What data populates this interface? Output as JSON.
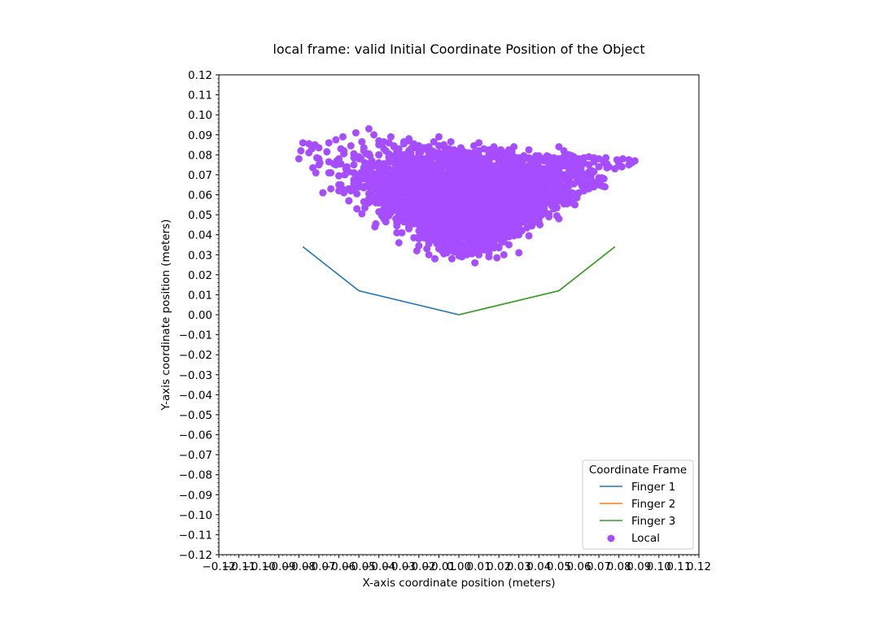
{
  "chart_data": {
    "type": "scatter",
    "title": "local frame: valid Initial Coordinate Position of the Object",
    "xlabel": "X-axis coordinate position (meters)",
    "ylabel": "Y-axis coordinate position (meters)",
    "xlim": [
      -0.12,
      0.12
    ],
    "ylim": [
      -0.12,
      0.12
    ],
    "xticks": [
      -0.12,
      -0.11,
      -0.1,
      -0.09,
      -0.08,
      -0.07,
      -0.06,
      -0.05,
      -0.04,
      -0.03,
      -0.02,
      -0.01,
      0.0,
      0.01,
      0.02,
      0.03,
      0.04,
      0.05,
      0.06,
      0.07,
      0.08,
      0.09,
      0.1,
      0.11,
      0.12
    ],
    "yticks": [
      0.12,
      0.11,
      0.1,
      0.09,
      0.08,
      0.07,
      0.06,
      0.05,
      0.04,
      0.03,
      0.02,
      0.01,
      0.0,
      -0.01,
      -0.02,
      -0.03,
      -0.04,
      -0.05,
      -0.06,
      -0.07,
      -0.08,
      -0.09,
      -0.1,
      -0.11,
      -0.12
    ],
    "xtick_labels": [
      "−0.12",
      "−0.11",
      "−0.10",
      "−0.09",
      "−0.08",
      "−0.07",
      "−0.06",
      "−0.05",
      "−0.04",
      "−0.03",
      "−0.02",
      "−0.01",
      "0.00",
      "0.01",
      "0.02",
      "0.03",
      "0.04",
      "0.05",
      "0.06",
      "0.07",
      "0.08",
      "0.09",
      "0.10",
      "0.11",
      "0.12"
    ],
    "ytick_labels": [
      "0.12",
      "0.11",
      "0.10",
      "0.09",
      "0.08",
      "0.07",
      "0.06",
      "0.05",
      "0.04",
      "0.03",
      "0.02",
      "0.01",
      "0.00",
      "−0.01",
      "−0.02",
      "−0.03",
      "−0.04",
      "−0.05",
      "−0.06",
      "−0.07",
      "−0.08",
      "−0.09",
      "−0.10",
      "−0.11",
      "−0.12"
    ],
    "legend": {
      "title": "Coordinate Frame",
      "placement": "lower-right"
    },
    "series": [
      {
        "name": "Finger 1",
        "type": "line",
        "color": "#1f77b4",
        "x": [
          -0.078,
          -0.05,
          0.0
        ],
        "y": [
          0.034,
          0.012,
          0.0
        ]
      },
      {
        "name": "Finger 2",
        "type": "line",
        "color": "#ff7f0e",
        "x": [
          0.0,
          0.05,
          0.078
        ],
        "y": [
          0.0,
          0.012,
          0.034
        ]
      },
      {
        "name": "Finger 3",
        "type": "line",
        "color": "#2ca02c",
        "x": [
          0.0,
          0.05,
          0.078
        ],
        "y": [
          0.0,
          0.012,
          0.034
        ]
      },
      {
        "name": "Local",
        "type": "scatter",
        "color": "#a64dff",
        "x": [
          -0.07,
          -0.06,
          -0.04,
          -0.03,
          -0.02,
          -0.01,
          0.0,
          0.01,
          0.02,
          0.03,
          0.04,
          0.05,
          0.06,
          0.07,
          0.078,
          0.085,
          -0.072,
          -0.075,
          -0.065,
          -0.058,
          -0.045,
          -0.04,
          -0.035,
          -0.03,
          -0.025,
          -0.02,
          -0.015,
          -0.01,
          -0.005,
          0.0,
          0.005,
          0.01,
          0.015,
          0.02,
          0.025,
          0.03,
          0.035,
          0.04,
          0.045,
          0.05,
          0.055,
          0.06,
          0.065,
          0.07,
          0.075,
          -0.05,
          -0.045,
          -0.04,
          -0.035,
          -0.03,
          -0.025,
          -0.02,
          -0.015,
          -0.01,
          -0.005,
          0.0,
          0.005,
          0.01,
          0.015,
          0.02,
          0.025,
          0.03,
          0.035,
          0.04,
          0.045,
          0.05,
          0.055,
          0.06,
          0.065,
          -0.06,
          -0.055,
          -0.05,
          -0.045,
          -0.04,
          -0.035,
          -0.03,
          -0.025,
          -0.02,
          -0.015,
          -0.01,
          -0.005,
          0.0,
          0.005,
          0.01,
          0.015,
          0.02,
          0.025,
          0.03,
          0.035,
          0.04,
          0.045,
          0.05,
          0.055,
          0.06,
          0.065,
          0.07,
          -0.04,
          -0.035,
          -0.03,
          -0.025,
          -0.02,
          -0.015,
          -0.01,
          -0.005,
          0.0,
          0.005,
          0.01,
          0.015,
          0.02,
          0.025,
          0.03,
          0.035,
          0.04,
          0.045,
          0.05,
          0.055,
          -0.03,
          -0.025,
          -0.02,
          -0.015,
          -0.01,
          -0.005,
          0.0,
          0.005,
          0.01,
          0.015,
          0.02,
          0.025,
          0.03,
          0.035,
          0.04,
          -0.02,
          -0.015,
          -0.01,
          -0.005,
          0.0,
          0.005,
          0.01,
          0.015,
          0.02,
          0.025,
          0.03,
          -0.01,
          -0.005,
          0.0,
          0.005,
          0.01,
          0.015,
          0.02,
          -0.08,
          -0.078,
          -0.068,
          -0.06,
          -0.055,
          -0.042,
          -0.02,
          -0.012,
          0.0,
          0.008,
          0.03,
          0.05,
          0.058,
          0.082,
          0.088,
          -0.03,
          0.025,
          -0.015,
          0.015,
          0.005,
          0.002,
          0.01,
          0.025,
          -0.064,
          0.073
        ],
        "y": [
          0.075,
          0.078,
          0.08,
          0.081,
          0.082,
          0.08,
          0.078,
          0.077,
          0.076,
          0.075,
          0.074,
          0.075,
          0.076,
          0.074,
          0.073,
          0.075,
          0.085,
          0.081,
          0.086,
          0.089,
          0.093,
          0.087,
          0.086,
          0.083,
          0.088,
          0.083,
          0.084,
          0.089,
          0.081,
          0.082,
          0.078,
          0.079,
          0.077,
          0.081,
          0.078,
          0.075,
          0.073,
          0.077,
          0.079,
          0.078,
          0.08,
          0.078,
          0.079,
          0.078,
          0.074,
          0.069,
          0.07,
          0.071,
          0.072,
          0.073,
          0.072,
          0.07,
          0.069,
          0.068,
          0.067,
          0.066,
          0.066,
          0.067,
          0.068,
          0.069,
          0.07,
          0.07,
          0.069,
          0.068,
          0.067,
          0.068,
          0.069,
          0.07,
          0.07,
          0.062,
          0.063,
          0.064,
          0.064,
          0.063,
          0.062,
          0.061,
          0.06,
          0.059,
          0.058,
          0.057,
          0.056,
          0.055,
          0.056,
          0.057,
          0.058,
          0.059,
          0.06,
          0.061,
          0.062,
          0.063,
          0.062,
          0.061,
          0.06,
          0.061,
          0.063,
          0.065,
          0.056,
          0.055,
          0.054,
          0.053,
          0.052,
          0.051,
          0.05,
          0.049,
          0.048,
          0.048,
          0.049,
          0.05,
          0.051,
          0.052,
          0.053,
          0.054,
          0.055,
          0.056,
          0.057,
          0.058,
          0.047,
          0.046,
          0.045,
          0.044,
          0.043,
          0.042,
          0.041,
          0.041,
          0.042,
          0.043,
          0.044,
          0.045,
          0.046,
          0.047,
          0.048,
          0.039,
          0.038,
          0.037,
          0.036,
          0.035,
          0.035,
          0.036,
          0.037,
          0.038,
          0.039,
          0.04,
          0.033,
          0.032,
          0.031,
          0.031,
          0.032,
          0.033,
          0.034,
          0.078,
          0.086,
          0.061,
          0.065,
          0.057,
          0.044,
          0.038,
          0.028,
          0.034,
          0.026,
          0.031,
          0.084,
          0.055,
          0.078,
          0.077,
          0.036,
          0.035,
          0.03,
          0.029,
          0.031,
          0.033,
          0.041,
          0.082,
          0.071,
          0.064
        ]
      }
    ]
  }
}
